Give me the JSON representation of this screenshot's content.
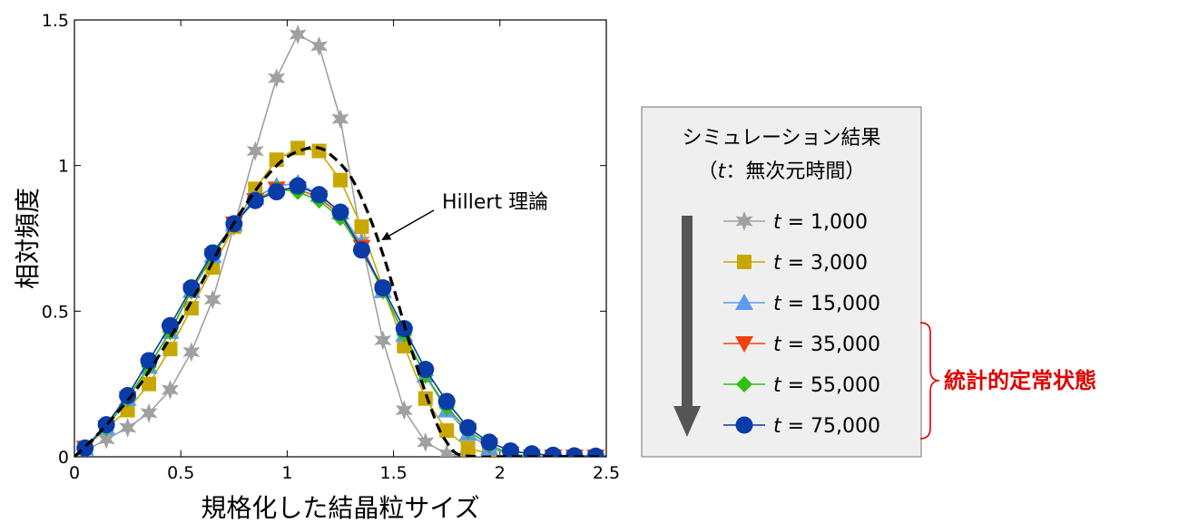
{
  "chart_data": {
    "type": "line",
    "xlabel": "規格化した結晶粒サイズ",
    "ylabel": "相対頻度",
    "xlim": [
      0,
      2.5
    ],
    "ylim": [
      0,
      1.5
    ],
    "x_ticks": [
      0,
      0.5,
      1,
      1.5,
      2,
      2.5
    ],
    "x_tick_labels": [
      "0",
      "0.5",
      "1",
      "1.5",
      "2",
      "2.5"
    ],
    "y_ticks": [
      0,
      0.5,
      1,
      1.5
    ],
    "y_tick_labels": [
      "0",
      "0.5",
      "1",
      "1.5"
    ],
    "grid": false,
    "legend": {
      "title_line1": "シミュレーション結果",
      "title_line2_open": "（",
      "title_line2_var": "t",
      "title_line2_rest": "：無次元時間）",
      "placement": "right"
    },
    "x": [
      0.05,
      0.15,
      0.25,
      0.35,
      0.45,
      0.55,
      0.65,
      0.75,
      0.85,
      0.95,
      1.05,
      1.15,
      1.25,
      1.35,
      1.45,
      1.55,
      1.65,
      1.75,
      1.85,
      1.95,
      2.05,
      2.15,
      2.25,
      2.35,
      2.45
    ],
    "series": [
      {
        "name": "t = 1,000",
        "var": "t",
        "value_text": " = 1,000",
        "marker": "star",
        "color": "#a0a0a0",
        "values": [
          0.02,
          0.06,
          0.1,
          0.15,
          0.23,
          0.36,
          0.54,
          0.79,
          1.05,
          1.3,
          1.45,
          1.41,
          1.16,
          0.74,
          0.4,
          0.16,
          0.05,
          0.01,
          0.0,
          0.0,
          0.0,
          0.0,
          0.0,
          0.0,
          0.0
        ]
      },
      {
        "name": "t = 3,000",
        "var": "t",
        "value_text": " = 3,000",
        "marker": "square",
        "color": "#c8a800",
        "values": [
          0.03,
          0.1,
          0.16,
          0.25,
          0.37,
          0.51,
          0.65,
          0.79,
          0.92,
          1.02,
          1.06,
          1.05,
          0.95,
          0.79,
          0.58,
          0.38,
          0.2,
          0.09,
          0.03,
          0.01,
          0.0,
          0.0,
          0.0,
          0.0,
          0.0
        ]
      },
      {
        "name": "t = 15,000",
        "var": "t",
        "value_text": " = 15,000",
        "marker": "triangle-up",
        "color": "#5b9bf0",
        "values": [
          0.03,
          0.1,
          0.2,
          0.31,
          0.43,
          0.57,
          0.69,
          0.8,
          0.89,
          0.93,
          0.94,
          0.9,
          0.84,
          0.73,
          0.57,
          0.42,
          0.28,
          0.16,
          0.08,
          0.03,
          0.01,
          0.0,
          0.0,
          0.0,
          0.0
        ]
      },
      {
        "name": "t = 35,000",
        "var": "t",
        "value_text": " = 35,000",
        "marker": "triangle-down",
        "color": "#ee4010",
        "values": [
          0.03,
          0.1,
          0.2,
          0.31,
          0.43,
          0.57,
          0.69,
          0.8,
          0.88,
          0.92,
          0.92,
          0.89,
          0.83,
          0.72,
          0.57,
          0.42,
          0.28,
          0.17,
          0.09,
          0.04,
          0.01,
          0.0,
          0.0,
          0.0,
          0.0
        ]
      },
      {
        "name": "t = 55,000",
        "var": "t",
        "value_text": " = 55,000",
        "marker": "diamond",
        "color": "#30c010",
        "values": [
          0.03,
          0.1,
          0.2,
          0.31,
          0.43,
          0.57,
          0.69,
          0.8,
          0.88,
          0.92,
          0.91,
          0.88,
          0.82,
          0.71,
          0.57,
          0.42,
          0.28,
          0.17,
          0.09,
          0.04,
          0.01,
          0.0,
          0.0,
          0.0,
          0.0
        ]
      },
      {
        "name": "t = 75,000",
        "var": "t",
        "value_text": " = 75,000",
        "marker": "circle",
        "color": "#0a3ca8",
        "values": [
          0.03,
          0.11,
          0.21,
          0.33,
          0.45,
          0.58,
          0.7,
          0.8,
          0.88,
          0.91,
          0.93,
          0.9,
          0.84,
          0.71,
          0.58,
          0.44,
          0.3,
          0.19,
          0.1,
          0.05,
          0.02,
          0.01,
          0.005,
          0.003,
          0.002
        ]
      }
    ],
    "theory_curve": {
      "name": "Hillert 理論",
      "style": "dashed",
      "color": "#000000",
      "x": [
        0.0,
        0.1,
        0.2,
        0.3,
        0.4,
        0.5,
        0.6,
        0.7,
        0.8,
        0.9,
        1.0,
        1.1,
        1.15,
        1.2,
        1.3,
        1.4,
        1.5,
        1.6,
        1.7,
        1.75,
        1.8,
        1.9,
        2.0,
        2.5
      ],
      "values": [
        0.0,
        0.07,
        0.15,
        0.24,
        0.35,
        0.47,
        0.6,
        0.74,
        0.86,
        0.96,
        1.03,
        1.06,
        1.06,
        1.04,
        0.96,
        0.8,
        0.58,
        0.33,
        0.12,
        0.05,
        0.01,
        0.0,
        0.0,
        0.0
      ]
    },
    "annotations": {
      "theory_label": "Hillert 理論",
      "steady_state_label": "統計的定常状態"
    }
  }
}
